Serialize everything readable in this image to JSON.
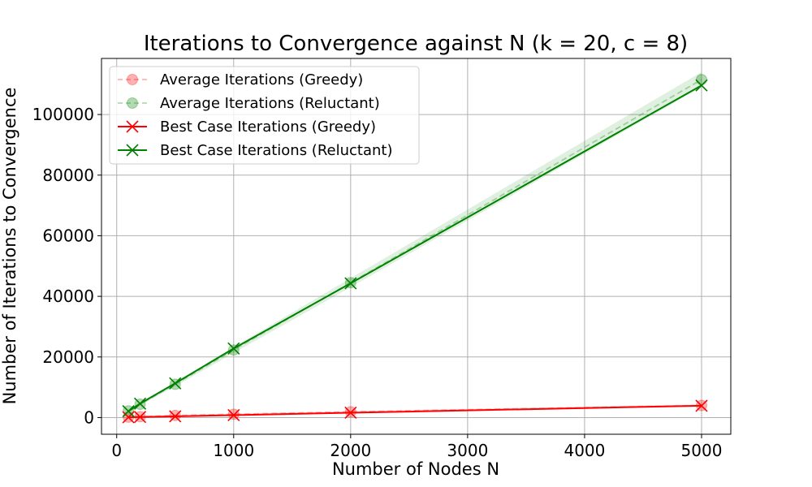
{
  "chart_data": {
    "type": "line",
    "title": "Iterations to Convergence against N (k = 20, c = 8)",
    "xlabel": "Number of Nodes N",
    "ylabel": "Number of Iterations to Convergence",
    "xlim": [
      -130,
      5250
    ],
    "ylim": [
      -5500,
      118500
    ],
    "xticks": [
      0,
      1000,
      2000,
      3000,
      4000,
      5000
    ],
    "yticks": [
      0,
      20000,
      40000,
      60000,
      80000,
      100000
    ],
    "grid": true,
    "legend_position": "top-left",
    "x": [
      100,
      200,
      500,
      1000,
      2000,
      5000
    ],
    "series": [
      {
        "name": "Average Iterations (Greedy)",
        "style": "dashed-circle",
        "color": "#ff0000",
        "values": [
          150,
          300,
          700,
          1100,
          1900,
          4000
        ],
        "band": [
          [
            100,
            200
          ],
          [
            250,
            350
          ],
          [
            600,
            800
          ],
          [
            950,
            1250
          ],
          [
            1700,
            2100
          ],
          [
            3700,
            4300
          ]
        ]
      },
      {
        "name": "Average Iterations (Reluctant)",
        "style": "dashed-circle",
        "color": "#008000",
        "values": [
          2200,
          4400,
          11000,
          22300,
          44500,
          111500
        ],
        "band": [
          [
            1900,
            2500
          ],
          [
            4000,
            4800
          ],
          [
            10300,
            11700
          ],
          [
            21300,
            23300
          ],
          [
            43000,
            46000
          ],
          [
            109000,
            114000
          ]
        ]
      },
      {
        "name": "Best Case Iterations (Greedy)",
        "style": "solid-x",
        "color": "#ff0000",
        "values": [
          100,
          200,
          400,
          800,
          1600,
          3900
        ]
      },
      {
        "name": "Best Case Iterations (Reluctant)",
        "style": "solid-x",
        "color": "#008000",
        "values": [
          2100,
          4600,
          11300,
          22800,
          44300,
          109600
        ]
      }
    ]
  }
}
